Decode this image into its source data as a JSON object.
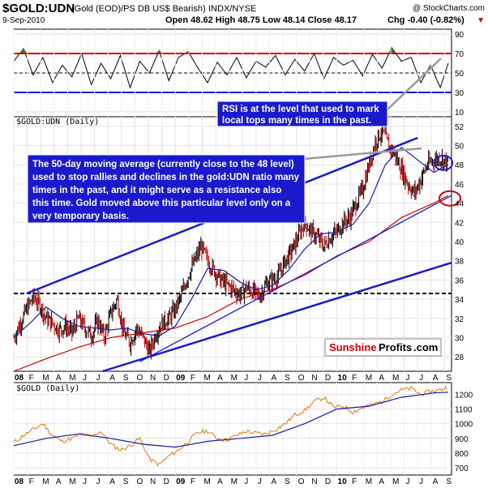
{
  "header": {
    "symbol": "$GOLD:UDN",
    "description": "(Gold (EOD)/PS DB US$ Bearish)",
    "exchange": "INDX/NYSE",
    "copyright": "@ StockCharts.com",
    "date": "9-Sep-2010",
    "ohlc_text": "Open 48.62  High 48.75  Low 48.14  Close 48.17",
    "chg_text": "Chg -0.40 (-0.82%)",
    "chg_arrow": "▼"
  },
  "colors": {
    "price_up": "#000000",
    "price_down": "#cc0000",
    "ma50": "#1a1aa0",
    "ma200": "#cc0000",
    "trendline": "#1a1acc",
    "support_dash": "#000000",
    "rsi_line": "#000000",
    "rsi_overbought": "#cc0000",
    "rsi_oversold": "#1a1acc",
    "rsi_fill": "#2e7d32",
    "gold_line": "#e07a10",
    "gold_ma": "#1a1aa0",
    "annotation_bg": "#1a1acc"
  },
  "annotations": {
    "rsi_note": [
      "RSI is at the level that used to mark",
      "local tops many times in the past."
    ],
    "ma_note": [
      "The 50-day moving average (currently close to the 48 level)",
      "used to stop rallies and declines in the gold:UDN ratio many",
      "times in the past, and it might serve as a resistance also",
      "this time. Gold moved above this particular level only on a",
      "very temporary basis."
    ]
  },
  "logo": {
    "part1": "Sunshine",
    "part2": "Profits",
    "part3": ".com"
  },
  "chart_data": [
    {
      "type": "line",
      "panel": "RSI",
      "title": "",
      "y_ticks": [
        90,
        70,
        50,
        30,
        10
      ],
      "ylim": [
        5,
        95
      ],
      "reference_levels": [
        70,
        30
      ],
      "series": [
        {
          "x": [
            2008.0,
            2008.06,
            2008.12,
            2008.18,
            2008.24,
            2008.3,
            2008.36,
            2008.42,
            2008.48,
            2008.54,
            2008.6,
            2008.66,
            2008.72,
            2008.78,
            2008.84,
            2008.9,
            2008.96,
            2009.02,
            2009.08,
            2009.14,
            2009.2,
            2009.26,
            2009.32,
            2009.38,
            2009.44,
            2009.5,
            2009.56,
            2009.62,
            2009.68,
            2009.74,
            2009.8,
            2009.86,
            2009.92,
            2009.98,
            2010.04,
            2010.1,
            2010.16,
            2010.22,
            2010.28,
            2010.34,
            2010.4,
            2010.46,
            2010.52,
            2010.58,
            2010.64,
            2010.69
          ],
          "values": [
            62,
            75,
            48,
            66,
            40,
            58,
            46,
            70,
            38,
            60,
            44,
            68,
            35,
            62,
            50,
            73,
            42,
            66,
            72,
            55,
            40,
            61,
            48,
            66,
            45,
            62,
            56,
            68,
            48,
            64,
            52,
            70,
            44,
            66,
            58,
            63,
            47,
            69,
            55,
            76,
            62,
            66,
            40,
            58,
            35,
            60
          ]
        }
      ]
    },
    {
      "type": "candlestick",
      "panel": "price",
      "title": "$GOLD:UDN (Daily)",
      "y_ticks": [
        52,
        50,
        48,
        46,
        44,
        42,
        40,
        38,
        36,
        34,
        32,
        30,
        28
      ],
      "ylim": [
        26.5,
        53
      ],
      "x_labels": [
        "08",
        "F",
        "M",
        "A",
        "M",
        "J",
        "J",
        "A",
        "S",
        "O",
        "N",
        "D",
        "09",
        "F",
        "M",
        "A",
        "M",
        "J",
        "J",
        "A",
        "S",
        "O",
        "N",
        "D",
        "10",
        "F",
        "M",
        "A",
        "M",
        "J",
        "J",
        "A",
        "S"
      ],
      "close_series": {
        "x": [
          2008.0,
          2008.04,
          2008.08,
          2008.12,
          2008.16,
          2008.2,
          2008.24,
          2008.28,
          2008.32,
          2008.36,
          2008.4,
          2008.44,
          2008.48,
          2008.52,
          2008.56,
          2008.6,
          2008.64,
          2008.68,
          2008.72,
          2008.76,
          2008.8,
          2008.84,
          2008.88,
          2008.92,
          2008.96,
          2009.0,
          2009.04,
          2009.08,
          2009.12,
          2009.16,
          2009.2,
          2009.24,
          2009.28,
          2009.32,
          2009.36,
          2009.4,
          2009.44,
          2009.48,
          2009.52,
          2009.56,
          2009.6,
          2009.64,
          2009.68,
          2009.72,
          2009.76,
          2009.8,
          2009.84,
          2009.88,
          2009.92,
          2009.96,
          2010.0,
          2010.04,
          2010.08,
          2010.12,
          2010.16,
          2010.2,
          2010.24,
          2010.28,
          2010.32,
          2010.36,
          2010.4,
          2010.44,
          2010.48,
          2010.52,
          2010.56,
          2010.6,
          2010.64,
          2010.69
        ],
        "values": [
          30.0,
          31.5,
          33.0,
          34.2,
          33.5,
          32.0,
          31.5,
          30.8,
          31.2,
          30.5,
          32.0,
          31.0,
          30.2,
          31.8,
          30.0,
          32.5,
          34.0,
          30.5,
          29.5,
          31.0,
          30.0,
          28.5,
          30.5,
          31.5,
          32.0,
          33.0,
          34.5,
          36.5,
          38.0,
          39.5,
          38.0,
          37.0,
          36.0,
          35.5,
          35.0,
          34.5,
          35.2,
          34.8,
          34.3,
          35.5,
          36.0,
          36.5,
          38.0,
          39.0,
          40.5,
          42.0,
          41.0,
          40.5,
          39.5,
          40.5,
          41.0,
          42.0,
          42.5,
          44.0,
          45.5,
          48.0,
          50.5,
          51.5,
          50.0,
          49.0,
          47.5,
          46.0,
          45.0,
          46.5,
          48.0,
          48.5,
          48.7,
          48.17
        ]
      },
      "ma50": {
        "x": [
          2008.0,
          2008.1,
          2008.2,
          2008.3,
          2008.4,
          2008.5,
          2008.6,
          2008.7,
          2008.8,
          2008.9,
          2009.0,
          2009.1,
          2009.2,
          2009.3,
          2009.4,
          2009.5,
          2009.6,
          2009.7,
          2009.8,
          2009.9,
          2010.0,
          2010.1,
          2010.2,
          2010.3,
          2010.4,
          2010.5,
          2010.6,
          2010.69
        ],
        "values": [
          30.0,
          31.5,
          33.2,
          32.0,
          31.2,
          31.0,
          30.8,
          31.0,
          30.4,
          30.2,
          31.2,
          34.0,
          37.2,
          37.0,
          35.8,
          35.0,
          35.4,
          37.0,
          39.2,
          40.8,
          41.0,
          41.8,
          44.0,
          48.0,
          49.8,
          48.5,
          47.2,
          48.0
        ]
      },
      "ma200": {
        "x": [
          2008.0,
          2008.2,
          2008.4,
          2008.6,
          2008.8,
          2009.0,
          2009.2,
          2009.4,
          2009.6,
          2009.8,
          2010.0,
          2010.2,
          2010.4,
          2010.6,
          2010.69
        ],
        "values": [
          26.5,
          27.8,
          29.0,
          30.0,
          30.5,
          31.0,
          32.2,
          34.0,
          35.0,
          36.5,
          38.5,
          40.0,
          42.5,
          44.0,
          44.8
        ]
      },
      "horizontal_support": 34.6,
      "highlight_levels": [
        48.2,
        44.5
      ]
    },
    {
      "type": "line",
      "panel": "gold",
      "title": "$GOLD (Daily)",
      "y_ticks": [
        1200,
        1100,
        1000,
        900,
        800,
        700
      ],
      "ylim": [
        650,
        1280
      ],
      "series": [
        {
          "name": "",
          "x": [
            2008.0,
            2008.06,
            2008.12,
            2008.18,
            2008.24,
            2008.3,
            2008.36,
            2008.42,
            2008.48,
            2008.54,
            2008.6,
            2008.66,
            2008.72,
            2008.78,
            2008.84,
            2008.9,
            2008.96,
            2009.02,
            2009.08,
            2009.14,
            2009.2,
            2009.26,
            2009.32,
            2009.38,
            2009.44,
            2009.5,
            2009.56,
            2009.62,
            2009.68,
            2009.74,
            2009.8,
            2009.86,
            2009.92,
            2009.98,
            2010.04,
            2010.1,
            2010.16,
            2010.22,
            2010.28,
            2010.34,
            2010.4,
            2010.46,
            2010.52,
            2010.58,
            2010.64,
            2010.69
          ],
          "values": [
            870,
            920,
            960,
            1000,
            920,
            880,
            900,
            930,
            910,
            950,
            860,
            820,
            850,
            900,
            760,
            720,
            780,
            820,
            880,
            940,
            950,
            900,
            890,
            920,
            950,
            935,
            930,
            960,
            1000,
            1060,
            1090,
            1150,
            1180,
            1110,
            1120,
            1080,
            1110,
            1130,
            1150,
            1200,
            1230,
            1240,
            1200,
            1220,
            1230,
            1250
          ]
        },
        {
          "name": "",
          "x": [
            2008.0,
            2008.2,
            2008.4,
            2008.6,
            2008.8,
            2009.0,
            2009.2,
            2009.4,
            2009.6,
            2009.8,
            2010.0,
            2010.2,
            2010.4,
            2010.6,
            2010.69
          ],
          "values": [
            850,
            900,
            930,
            900,
            860,
            840,
            880,
            900,
            920,
            1000,
            1100,
            1120,
            1180,
            1210,
            1215
          ]
        }
      ]
    }
  ]
}
